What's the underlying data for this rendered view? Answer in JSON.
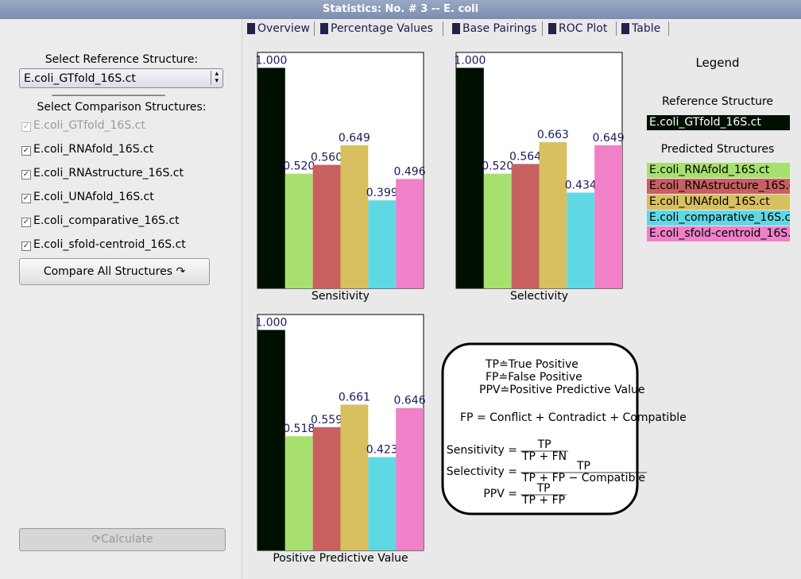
{
  "window": {
    "title": "Statistics: No. # 3 -- E. coli"
  },
  "tabs": [
    "Overview",
    "Percentage Values",
    "Base Pairings",
    "ROC Plot",
    "Table"
  ],
  "sidebar": {
    "reference_label": "Select Reference Structure:",
    "reference_value": "E.coli_GTfold_16S.ct",
    "separator": "------------------------------------------------",
    "comparison_label": "Select Comparison Structures:",
    "comparison": [
      "E.coli_GTfold_16S.ct",
      "E.coli_RNAfold_16S.ct",
      "E.coli_RNAstructure_16S.ct",
      "E.coli_UNAfold_16S.ct",
      "E.coli_comparative_16S.ct",
      "E.coli_sfold-centroid_16S.ct"
    ],
    "compare_button": "Compare All Structures",
    "calculate_button": "Calculate"
  },
  "chart_data": [
    {
      "type": "bar",
      "title": "Sensitivity",
      "values": [
        1.0,
        0.52,
        0.56,
        0.649,
        0.399,
        0.496
      ],
      "value_labels": [
        "1.000",
        "0.520",
        "0.560",
        "0.649",
        "0.399",
        "0.496"
      ],
      "colors": [
        "#001000",
        "#a8e070",
        "#c86060",
        "#d8c060",
        "#60d8e4",
        "#f080c8"
      ],
      "ylim": [
        0,
        1.07
      ]
    },
    {
      "type": "bar",
      "title": "Selectivity",
      "values": [
        1.0,
        0.52,
        0.564,
        0.663,
        0.434,
        0.649
      ],
      "value_labels": [
        "1.000",
        "0.520",
        "0.564",
        "0.663",
        "0.434",
        "0.649"
      ],
      "colors": [
        "#001000",
        "#a8e070",
        "#c86060",
        "#d8c060",
        "#60d8e4",
        "#f080c8"
      ],
      "ylim": [
        0,
        1.07
      ]
    },
    {
      "type": "bar",
      "title": "Positive Predictive Value",
      "values": [
        1.0,
        0.518,
        0.559,
        0.661,
        0.423,
        0.646
      ],
      "value_labels": [
        "1.000",
        "0.518",
        "0.559",
        "0.661",
        "0.423",
        "0.646"
      ],
      "colors": [
        "#001000",
        "#a8e070",
        "#c86060",
        "#d8c060",
        "#60d8e4",
        "#f080c8"
      ],
      "ylim": [
        0,
        1.07
      ]
    }
  ],
  "legend": {
    "title": "Legend",
    "reference_title": "Reference Structure",
    "reference": {
      "name": "E.coli_GTfold_16S.ct",
      "color": "#001000"
    },
    "predicted_title": "Predicted Structures",
    "predicted": [
      {
        "name": "E.coli_RNAfold_16S.ct",
        "color": "#a8e070"
      },
      {
        "name": "E.coli_RNAstructure_16S.ct",
        "color": "#c86060"
      },
      {
        "name": "E.coli_UNAfold_16S.ct",
        "color": "#d8c060"
      },
      {
        "name": "E.coli_comparative_16S.ct",
        "color": "#60d8e4"
      },
      {
        "name": "E.coli_sfold-centroid_16S.ct",
        "color": "#f080c8"
      }
    ]
  },
  "formulas": {
    "definitions": [
      "TP≐True Positive",
      "FP≐False Positive",
      "PPV≐Positive Predictive Value"
    ],
    "fp_equation": "FP = Conflict + Contradict + Compatible",
    "fractions": [
      {
        "label": "Sensitivity =",
        "numerator": "TP",
        "denominator": "TP + FN"
      },
      {
        "label": "Selectivity =",
        "numerator": "TP",
        "denominator": "TP + FP − Compatible"
      },
      {
        "label": "PPV =",
        "numerator": "TP",
        "denominator": "TP + FP"
      }
    ]
  }
}
